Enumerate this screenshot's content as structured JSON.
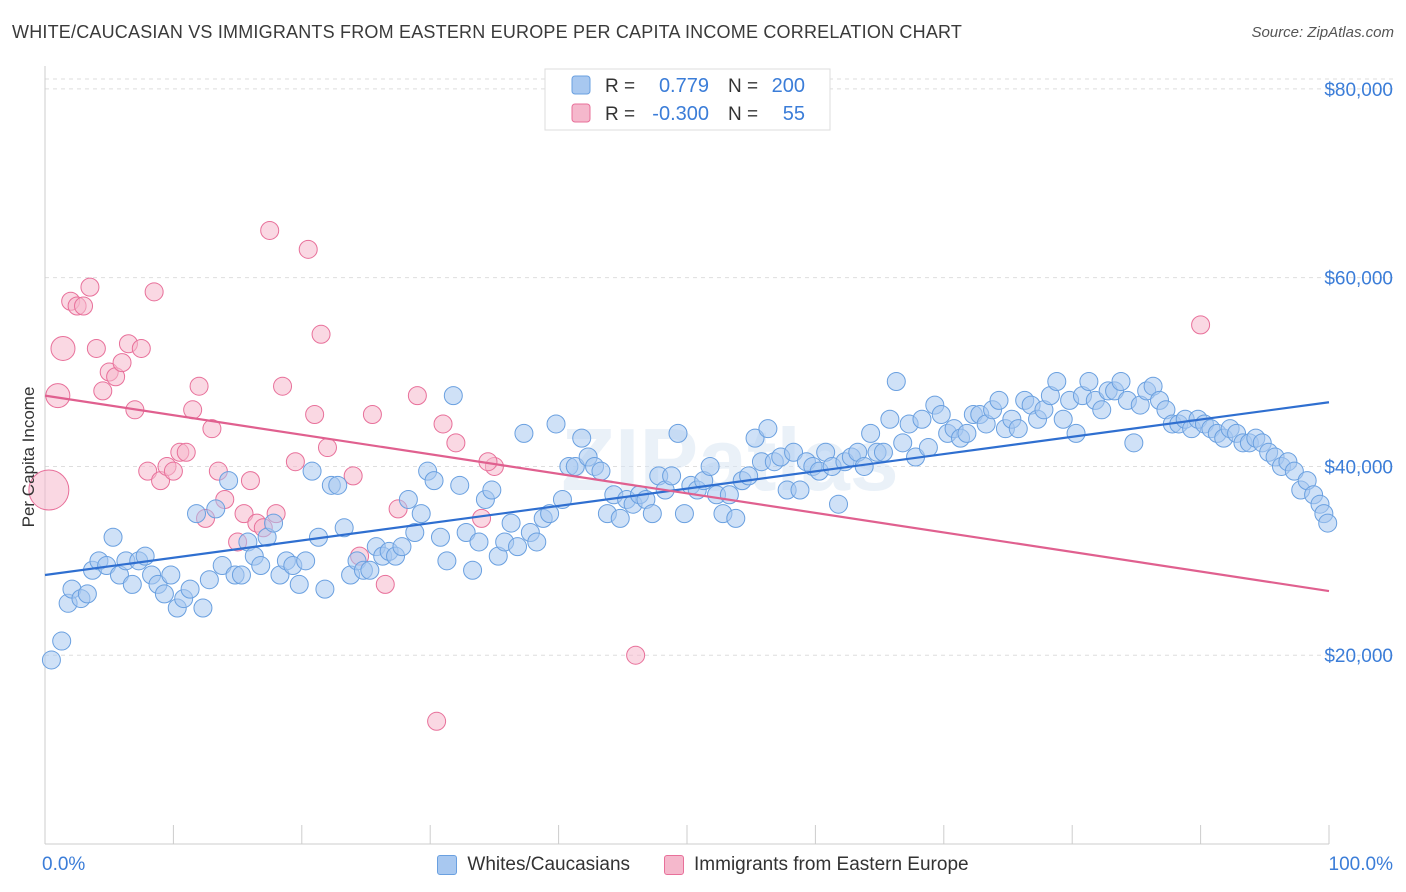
{
  "header": {
    "title": "WHITE/CAUCASIAN VS IMMIGRANTS FROM EASTERN EUROPE PER CAPITA INCOME CORRELATION CHART",
    "source": "Source: ZipAtlas.com"
  },
  "watermark": "ZIPatlas",
  "legend_top": {
    "r_label": "R =",
    "n_label": "N =",
    "rows": [
      {
        "r": "0.779",
        "n": "200",
        "color": "#a8c8f0"
      },
      {
        "r": "-0.300",
        "n": "55",
        "color": "#f5b8cc"
      }
    ]
  },
  "chart_data": {
    "type": "scatter",
    "title": "WHITE/CAUCASIAN VS IMMIGRANTS FROM EASTERN EUROPE PER CAPITA INCOME CORRELATION CHART",
    "xlabel": "",
    "ylabel": "Per Capita Income",
    "xlim": [
      0,
      100
    ],
    "ylim": [
      0,
      82000
    ],
    "x_tick_labels": [
      "0.0%",
      "100.0%"
    ],
    "y_ticks": [
      20000,
      40000,
      60000,
      80000
    ],
    "y_tick_labels": [
      "$20,000",
      "$40,000",
      "$60,000",
      "$80,000"
    ],
    "grid": true,
    "legend_position": "bottom",
    "series": [
      {
        "name": "Whites/Caucasians",
        "color": "#6aa0e0",
        "fill": "#a8c8f0",
        "r": 0.779,
        "n": 200,
        "trend": {
          "x": [
            0,
            100
          ],
          "y": [
            28500,
            46800
          ]
        },
        "points": [
          [
            0.5,
            19500
          ],
          [
            1.3,
            21500
          ],
          [
            1.8,
            25500
          ],
          [
            2.1,
            27000
          ],
          [
            2.8,
            26000
          ],
          [
            3.3,
            26500
          ],
          [
            3.7,
            29000
          ],
          [
            4.2,
            30000
          ],
          [
            4.8,
            29500
          ],
          [
            5.3,
            32500
          ],
          [
            5.8,
            28500
          ],
          [
            6.3,
            30000
          ],
          [
            6.8,
            27500
          ],
          [
            7.3,
            30000
          ],
          [
            7.8,
            30500
          ],
          [
            8.3,
            28500
          ],
          [
            8.8,
            27500
          ],
          [
            9.3,
            26500
          ],
          [
            9.8,
            28500
          ],
          [
            10.3,
            25000
          ],
          [
            10.8,
            26000
          ],
          [
            11.3,
            27000
          ],
          [
            11.8,
            35000
          ],
          [
            12.3,
            25000
          ],
          [
            12.8,
            28000
          ],
          [
            13.3,
            35500
          ],
          [
            13.8,
            29500
          ],
          [
            14.3,
            38500
          ],
          [
            14.8,
            28500
          ],
          [
            15.3,
            28500
          ],
          [
            15.8,
            32000
          ],
          [
            16.3,
            30500
          ],
          [
            16.8,
            29500
          ],
          [
            17.3,
            32500
          ],
          [
            17.8,
            34000
          ],
          [
            18.3,
            28500
          ],
          [
            18.8,
            30000
          ],
          [
            19.3,
            29500
          ],
          [
            19.8,
            27500
          ],
          [
            20.3,
            30000
          ],
          [
            20.8,
            39500
          ],
          [
            21.3,
            32500
          ],
          [
            21.8,
            27000
          ],
          [
            22.3,
            38000
          ],
          [
            22.8,
            38000
          ],
          [
            23.3,
            33500
          ],
          [
            23.8,
            28500
          ],
          [
            24.3,
            30000
          ],
          [
            24.8,
            29000
          ],
          [
            25.3,
            29000
          ],
          [
            25.8,
            31500
          ],
          [
            26.3,
            30500
          ],
          [
            26.8,
            31000
          ],
          [
            27.3,
            30500
          ],
          [
            27.8,
            31500
          ],
          [
            28.3,
            36500
          ],
          [
            28.8,
            33000
          ],
          [
            29.3,
            35000
          ],
          [
            29.8,
            39500
          ],
          [
            30.3,
            38500
          ],
          [
            30.8,
            32500
          ],
          [
            31.3,
            30000
          ],
          [
            31.8,
            47500
          ],
          [
            32.3,
            38000
          ],
          [
            32.8,
            33000
          ],
          [
            33.3,
            29000
          ],
          [
            33.8,
            32000
          ],
          [
            34.3,
            36500
          ],
          [
            34.8,
            37500
          ],
          [
            35.3,
            30500
          ],
          [
            35.8,
            32000
          ],
          [
            36.3,
            34000
          ],
          [
            36.8,
            31500
          ],
          [
            37.3,
            43500
          ],
          [
            37.8,
            33000
          ],
          [
            38.3,
            32000
          ],
          [
            38.8,
            34500
          ],
          [
            39.3,
            35000
          ],
          [
            39.8,
            44500
          ],
          [
            40.3,
            36500
          ],
          [
            40.8,
            40000
          ],
          [
            41.3,
            40000
          ],
          [
            41.8,
            43000
          ],
          [
            42.3,
            41000
          ],
          [
            42.8,
            40000
          ],
          [
            43.3,
            39500
          ],
          [
            43.8,
            35000
          ],
          [
            44.3,
            37000
          ],
          [
            44.8,
            34500
          ],
          [
            45.3,
            36500
          ],
          [
            45.8,
            36000
          ],
          [
            46.3,
            37000
          ],
          [
            46.8,
            36500
          ],
          [
            47.3,
            35000
          ],
          [
            47.8,
            39000
          ],
          [
            48.3,
            37500
          ],
          [
            48.8,
            39000
          ],
          [
            49.3,
            43500
          ],
          [
            49.8,
            35000
          ],
          [
            50.3,
            38000
          ],
          [
            50.8,
            37500
          ],
          [
            51.3,
            38500
          ],
          [
            51.8,
            40000
          ],
          [
            52.3,
            37000
          ],
          [
            52.8,
            35000
          ],
          [
            53.3,
            37000
          ],
          [
            53.8,
            34500
          ],
          [
            54.3,
            38500
          ],
          [
            54.8,
            39000
          ],
          [
            55.3,
            43000
          ],
          [
            55.8,
            40500
          ],
          [
            56.3,
            44000
          ],
          [
            56.8,
            40500
          ],
          [
            57.3,
            41000
          ],
          [
            57.8,
            37500
          ],
          [
            58.3,
            41500
          ],
          [
            58.8,
            37500
          ],
          [
            59.3,
            40500
          ],
          [
            59.8,
            40000
          ],
          [
            60.3,
            39500
          ],
          [
            60.8,
            41500
          ],
          [
            61.3,
            40000
          ],
          [
            61.8,
            36000
          ],
          [
            62.3,
            40500
          ],
          [
            62.8,
            41000
          ],
          [
            63.3,
            41500
          ],
          [
            63.8,
            40000
          ],
          [
            64.3,
            43500
          ],
          [
            64.8,
            41500
          ],
          [
            65.3,
            41500
          ],
          [
            65.8,
            45000
          ],
          [
            66.3,
            49000
          ],
          [
            66.8,
            42500
          ],
          [
            67.3,
            44500
          ],
          [
            67.8,
            41000
          ],
          [
            68.3,
            45000
          ],
          [
            68.8,
            42000
          ],
          [
            69.3,
            46500
          ],
          [
            69.8,
            45500
          ],
          [
            70.3,
            43500
          ],
          [
            70.8,
            44000
          ],
          [
            71.3,
            43000
          ],
          [
            71.8,
            43500
          ],
          [
            72.3,
            45500
          ],
          [
            72.8,
            45500
          ],
          [
            73.3,
            44500
          ],
          [
            73.8,
            46000
          ],
          [
            74.3,
            47000
          ],
          [
            74.8,
            44000
          ],
          [
            75.3,
            45000
          ],
          [
            75.8,
            44000
          ],
          [
            76.3,
            47000
          ],
          [
            76.8,
            46500
          ],
          [
            77.3,
            45000
          ],
          [
            77.8,
            46000
          ],
          [
            78.3,
            47500
          ],
          [
            78.8,
            49000
          ],
          [
            79.3,
            45000
          ],
          [
            79.8,
            47000
          ],
          [
            80.3,
            43500
          ],
          [
            80.8,
            47500
          ],
          [
            81.3,
            49000
          ],
          [
            81.8,
            47000
          ],
          [
            82.3,
            46000
          ],
          [
            82.8,
            48000
          ],
          [
            83.3,
            48000
          ],
          [
            83.8,
            49000
          ],
          [
            84.3,
            47000
          ],
          [
            84.8,
            42500
          ],
          [
            85.3,
            46500
          ],
          [
            85.8,
            48000
          ],
          [
            86.3,
            48500
          ],
          [
            86.8,
            47000
          ],
          [
            87.3,
            46000
          ],
          [
            87.8,
            44500
          ],
          [
            88.3,
            44500
          ],
          [
            88.8,
            45000
          ],
          [
            89.3,
            44000
          ],
          [
            89.8,
            45000
          ],
          [
            90.3,
            44500
          ],
          [
            90.8,
            44000
          ],
          [
            91.3,
            43500
          ],
          [
            91.8,
            43000
          ],
          [
            92.3,
            44000
          ],
          [
            92.8,
            43500
          ],
          [
            93.3,
            42500
          ],
          [
            93.8,
            42500
          ],
          [
            94.3,
            43000
          ],
          [
            94.8,
            42500
          ],
          [
            95.3,
            41500
          ],
          [
            95.8,
            41000
          ],
          [
            96.3,
            40000
          ],
          [
            96.8,
            40500
          ],
          [
            97.3,
            39500
          ],
          [
            97.8,
            37500
          ],
          [
            98.3,
            38500
          ],
          [
            98.8,
            37000
          ],
          [
            99.3,
            36000
          ],
          [
            99.6,
            35000
          ],
          [
            99.9,
            34000
          ]
        ]
      },
      {
        "name": "Immigrants from Eastern Europe",
        "color": "#e8709a",
        "fill": "#f5b8cc",
        "r": -0.3,
        "n": 55,
        "trend": {
          "x": [
            0,
            100
          ],
          "y": [
            47500,
            26800
          ]
        },
        "points": [
          [
            0.3,
            37500
          ],
          [
            1.0,
            47500
          ],
          [
            1.4,
            52500
          ],
          [
            2.0,
            57500
          ],
          [
            2.5,
            57000
          ],
          [
            3.0,
            57000
          ],
          [
            3.5,
            59000
          ],
          [
            4.0,
            52500
          ],
          [
            4.5,
            48000
          ],
          [
            5.0,
            50000
          ],
          [
            5.5,
            49500
          ],
          [
            6.0,
            51000
          ],
          [
            6.5,
            53000
          ],
          [
            7.0,
            46000
          ],
          [
            7.5,
            52500
          ],
          [
            8.0,
            39500
          ],
          [
            8.5,
            58500
          ],
          [
            9.0,
            38500
          ],
          [
            9.5,
            40000
          ],
          [
            10.0,
            39500
          ],
          [
            10.5,
            41500
          ],
          [
            11.0,
            41500
          ],
          [
            11.5,
            46000
          ],
          [
            12.0,
            48500
          ],
          [
            12.5,
            34500
          ],
          [
            13.0,
            44000
          ],
          [
            13.5,
            39500
          ],
          [
            14.0,
            36500
          ],
          [
            15.0,
            32000
          ],
          [
            15.5,
            35000
          ],
          [
            16.0,
            38500
          ],
          [
            16.5,
            34000
          ],
          [
            17.0,
            33500
          ],
          [
            17.5,
            65000
          ],
          [
            18.0,
            35000
          ],
          [
            18.5,
            48500
          ],
          [
            19.5,
            40500
          ],
          [
            20.5,
            63000
          ],
          [
            21.0,
            45500
          ],
          [
            21.5,
            54000
          ],
          [
            22.0,
            42000
          ],
          [
            24.0,
            39000
          ],
          [
            24.5,
            30500
          ],
          [
            25.5,
            45500
          ],
          [
            26.5,
            27500
          ],
          [
            27.5,
            35500
          ],
          [
            29.0,
            47500
          ],
          [
            30.5,
            13000
          ],
          [
            31.0,
            44500
          ],
          [
            32.0,
            42500
          ],
          [
            34.0,
            34500
          ],
          [
            35.0,
            40000
          ],
          [
            46.0,
            20000
          ],
          [
            90.0,
            55000
          ],
          [
            34.5,
            40500
          ]
        ]
      }
    ]
  },
  "legend_bottom": [
    {
      "label": "Whites/Caucasians",
      "color": "#a8c8f0",
      "border": "#6aa0e0"
    },
    {
      "label": "Immigrants from Eastern Europe",
      "color": "#f5b8cc",
      "border": "#e8709a"
    }
  ]
}
